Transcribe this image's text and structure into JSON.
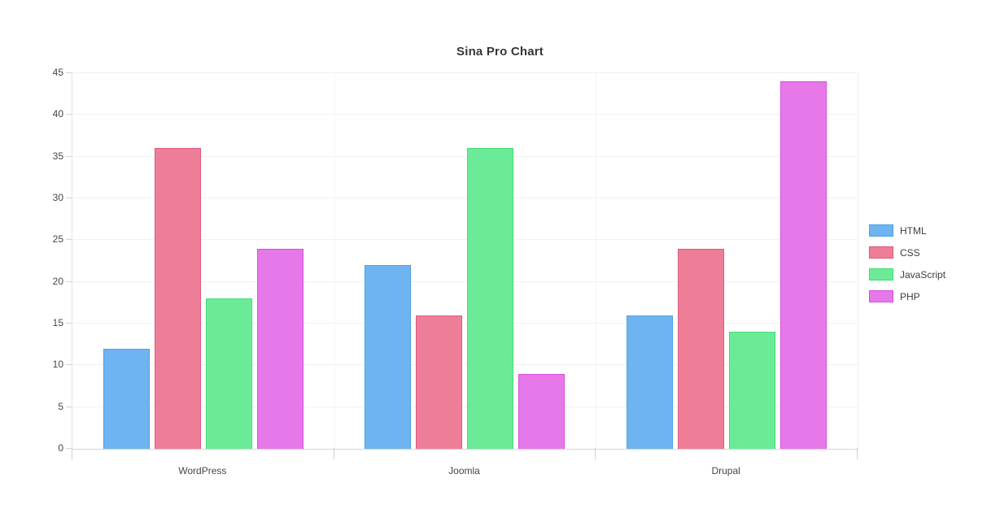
{
  "chart_data": {
    "type": "bar",
    "title": "Sina Pro Chart",
    "categories": [
      "WordPress",
      "Joomla",
      "Drupal"
    ],
    "series": [
      {
        "name": "HTML",
        "values": [
          12,
          22,
          16
        ],
        "fill": "#6EB4F0",
        "border": "#4FA0E6"
      },
      {
        "name": "CSS",
        "values": [
          36,
          16,
          24
        ],
        "fill": "#EE7E98",
        "border": "#E05A7E"
      },
      {
        "name": "JavaScript",
        "values": [
          18,
          36,
          14
        ],
        "fill": "#6BEB97",
        "border": "#43DC78"
      },
      {
        "name": "PHP",
        "values": [
          24,
          9,
          44
        ],
        "fill": "#E678EA",
        "border": "#D84EDE"
      }
    ],
    "xlabel": "",
    "ylabel": "",
    "ylim": [
      0,
      45
    ],
    "yticks": [
      0,
      5,
      10,
      15,
      20,
      25,
      30,
      35,
      40,
      45
    ],
    "grid": true,
    "legend_position": "right",
    "background_color": "#ffffff",
    "title_color": "#363636",
    "tick_label_color": "#464646"
  }
}
